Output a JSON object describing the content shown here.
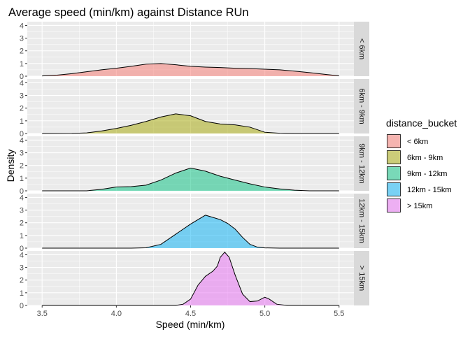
{
  "chart_data": {
    "type": "area",
    "title": "Average speed (min/km) against Distance RUn",
    "xlabel": "Speed (min/km)",
    "ylabel": "Density",
    "xlim": [
      3.4,
      5.6
    ],
    "ylim": [
      0,
      4.3
    ],
    "x_ticks": [
      "3.5",
      "4.0",
      "4.5",
      "5.0",
      "5.5"
    ],
    "x_tick_values": [
      3.5,
      4.0,
      4.5,
      5.0,
      5.5
    ],
    "y_ticks": [
      "0",
      "1",
      "2",
      "3",
      "4"
    ],
    "y_tick_values": [
      0,
      1,
      2,
      3,
      4
    ],
    "grid": true,
    "legend": {
      "title": "distance_bucket",
      "position": "right"
    },
    "series": [
      {
        "name": "< 6km",
        "facet_label": "< 6km",
        "color": "#F8766D",
        "points": [
          [
            3.5,
            0.02
          ],
          [
            3.6,
            0.08
          ],
          [
            3.7,
            0.2
          ],
          [
            3.8,
            0.35
          ],
          [
            3.9,
            0.5
          ],
          [
            4.0,
            0.63
          ],
          [
            4.1,
            0.78
          ],
          [
            4.2,
            0.95
          ],
          [
            4.3,
            1.0
          ],
          [
            4.4,
            0.9
          ],
          [
            4.5,
            0.78
          ],
          [
            4.6,
            0.72
          ],
          [
            4.7,
            0.68
          ],
          [
            4.8,
            0.63
          ],
          [
            4.9,
            0.6
          ],
          [
            5.0,
            0.55
          ],
          [
            5.1,
            0.5
          ],
          [
            5.2,
            0.4
          ],
          [
            5.3,
            0.28
          ],
          [
            5.4,
            0.15
          ],
          [
            5.5,
            0.03
          ]
        ]
      },
      {
        "name": "6km - 9km",
        "facet_label": "6km - 9km",
        "color": "#A3A500",
        "points": [
          [
            3.5,
            0
          ],
          [
            3.7,
            0.01
          ],
          [
            3.8,
            0.05
          ],
          [
            3.9,
            0.2
          ],
          [
            4.0,
            0.4
          ],
          [
            4.1,
            0.65
          ],
          [
            4.2,
            0.95
          ],
          [
            4.3,
            1.3
          ],
          [
            4.4,
            1.55
          ],
          [
            4.5,
            1.4
          ],
          [
            4.6,
            0.95
          ],
          [
            4.7,
            0.75
          ],
          [
            4.8,
            0.68
          ],
          [
            4.9,
            0.5
          ],
          [
            5.0,
            0.1
          ],
          [
            5.1,
            0.02
          ],
          [
            5.2,
            0
          ],
          [
            5.5,
            0
          ]
        ]
      },
      {
        "name": "9km - 12km",
        "facet_label": "9km - 12km",
        "color": "#00BF7D",
        "points": [
          [
            3.5,
            0
          ],
          [
            3.8,
            0
          ],
          [
            3.9,
            0.12
          ],
          [
            4.0,
            0.3
          ],
          [
            4.1,
            0.33
          ],
          [
            4.2,
            0.45
          ],
          [
            4.3,
            0.85
          ],
          [
            4.4,
            1.4
          ],
          [
            4.5,
            1.8
          ],
          [
            4.6,
            1.55
          ],
          [
            4.7,
            1.15
          ],
          [
            4.8,
            0.85
          ],
          [
            4.9,
            0.55
          ],
          [
            5.0,
            0.3
          ],
          [
            5.1,
            0.15
          ],
          [
            5.2,
            0.05
          ],
          [
            5.3,
            0
          ],
          [
            5.5,
            0
          ]
        ]
      },
      {
        "name": "12km - 15km",
        "facet_label": "12km - 15km",
        "color": "#00B0F6",
        "points": [
          [
            3.5,
            0
          ],
          [
            4.1,
            0
          ],
          [
            4.2,
            0.03
          ],
          [
            4.3,
            0.3
          ],
          [
            4.4,
            1.1
          ],
          [
            4.5,
            1.9
          ],
          [
            4.6,
            2.6
          ],
          [
            4.7,
            2.25
          ],
          [
            4.75,
            1.95
          ],
          [
            4.8,
            1.5
          ],
          [
            4.85,
            0.85
          ],
          [
            4.9,
            0.3
          ],
          [
            4.95,
            0.08
          ],
          [
            5.0,
            0.02
          ],
          [
            5.1,
            0
          ],
          [
            5.5,
            0
          ]
        ]
      },
      {
        "name": "> 15km",
        "facet_label": "> 15km",
        "color": "#E76BF3",
        "points": [
          [
            3.5,
            0
          ],
          [
            4.4,
            0
          ],
          [
            4.45,
            0.1
          ],
          [
            4.5,
            0.5
          ],
          [
            4.55,
            1.6
          ],
          [
            4.6,
            2.3
          ],
          [
            4.65,
            2.7
          ],
          [
            4.68,
            3.1
          ],
          [
            4.7,
            3.8
          ],
          [
            4.73,
            4.2
          ],
          [
            4.76,
            3.8
          ],
          [
            4.8,
            2.4
          ],
          [
            4.85,
            0.9
          ],
          [
            4.9,
            0.3
          ],
          [
            4.95,
            0.35
          ],
          [
            5.0,
            0.65
          ],
          [
            5.03,
            0.5
          ],
          [
            5.08,
            0.1
          ],
          [
            5.15,
            0
          ],
          [
            5.5,
            0
          ]
        ]
      }
    ]
  }
}
